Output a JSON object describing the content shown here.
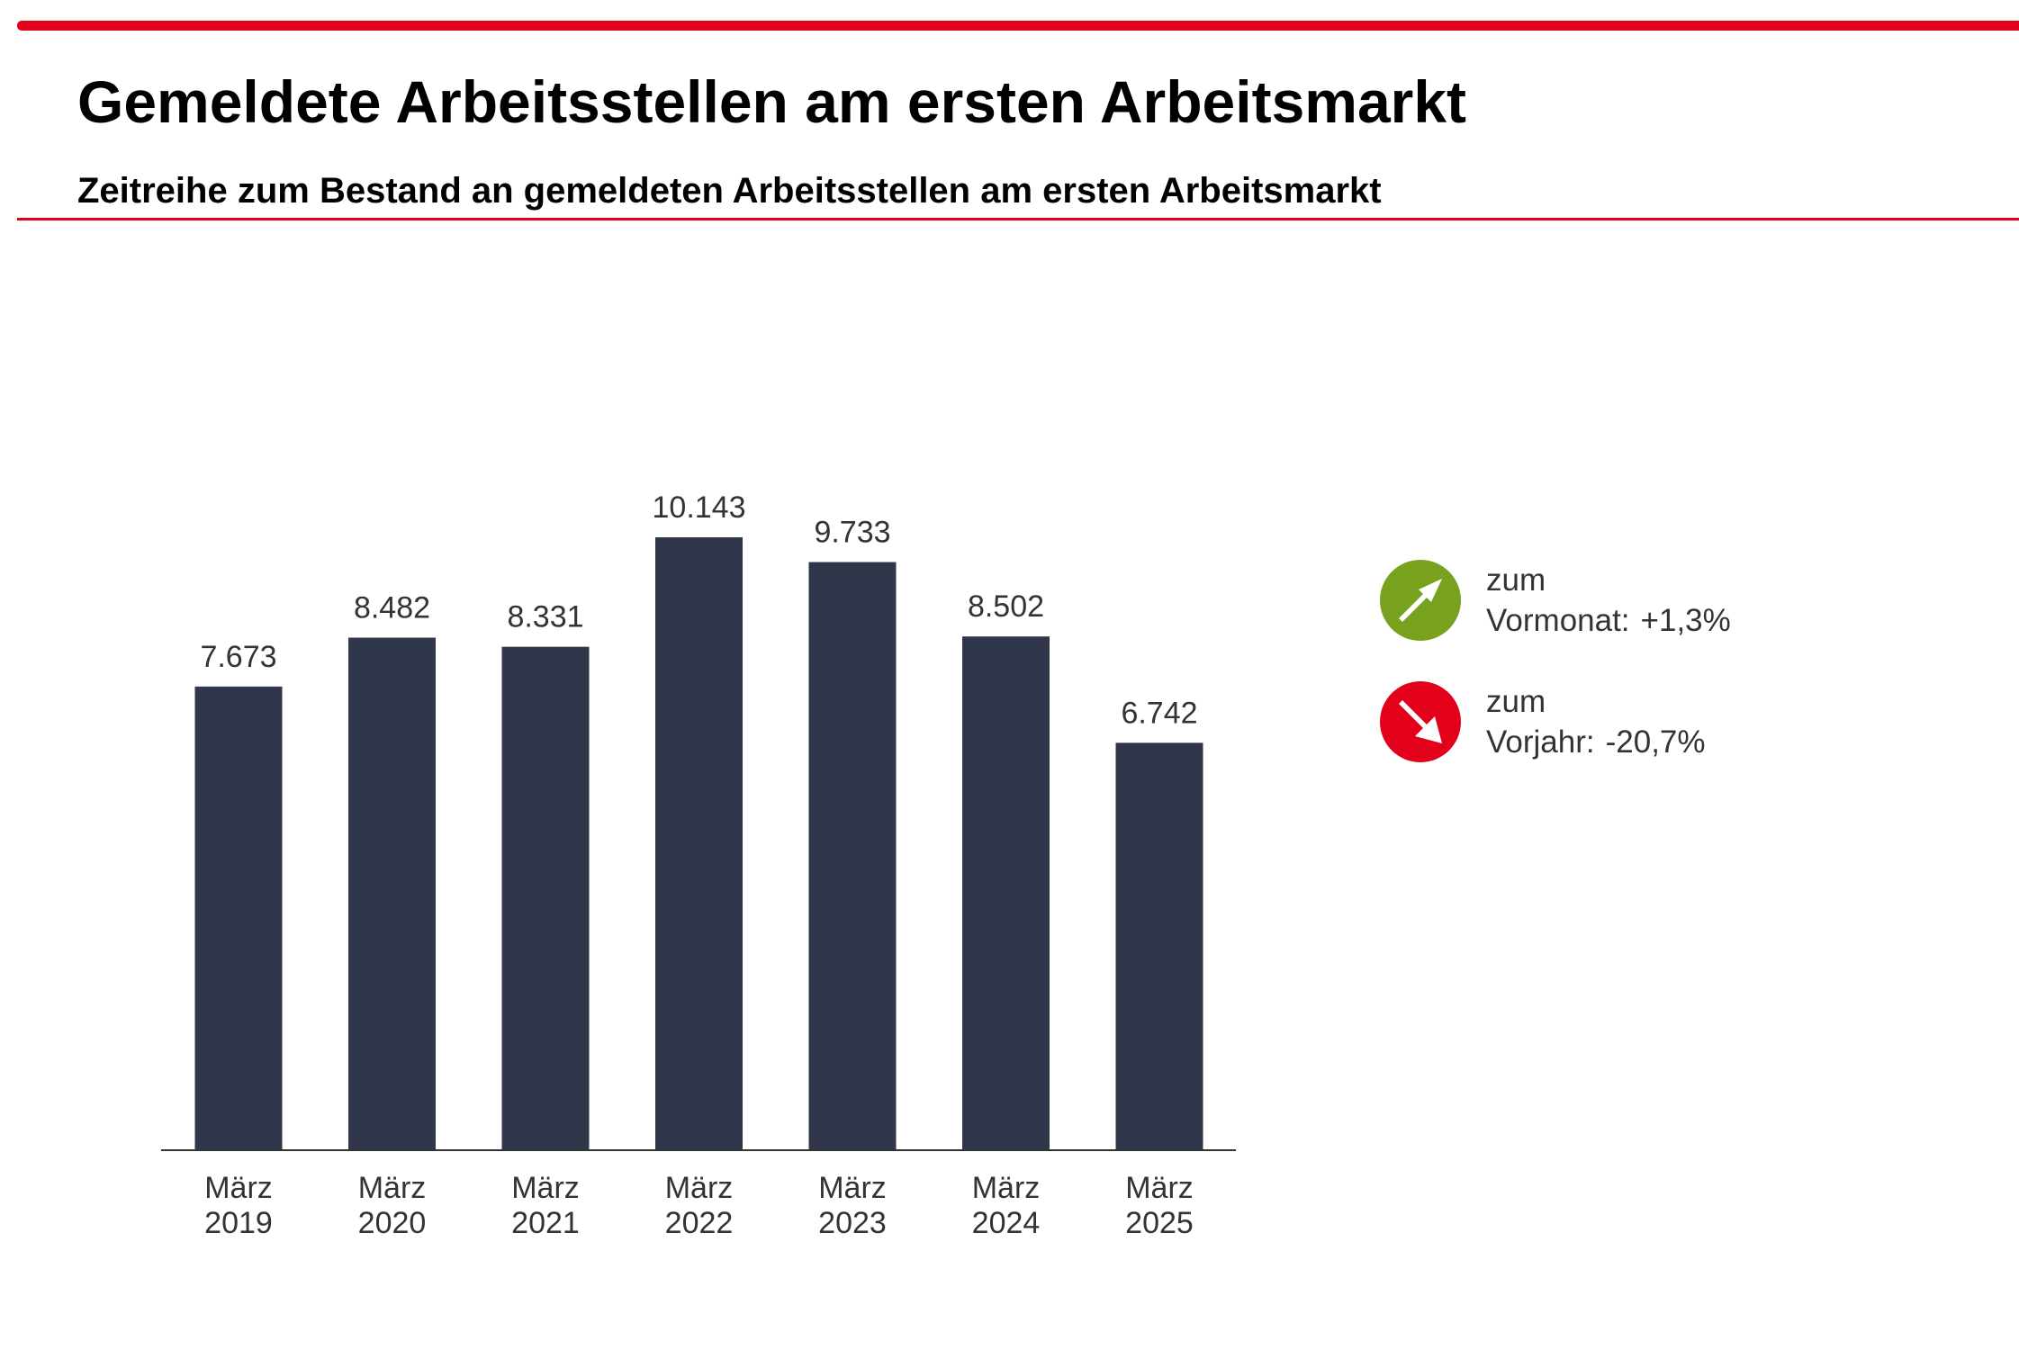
{
  "header": {
    "title": "Gemeldete Arbeitsstellen am ersten Arbeitsmarkt",
    "subtitle": "Zeitreihe zum Bestand an gemeldeten Arbeitsstellen am ersten Arbeitsmarkt"
  },
  "colors": {
    "accent": "#e2001a",
    "bar": "#30374a",
    "up_indicator": "#78a21e",
    "down_indicator": "#e2001a"
  },
  "chart_data": {
    "type": "bar",
    "title": "",
    "xlabel": "",
    "ylabel": "",
    "categories": [
      [
        "März",
        "2019"
      ],
      [
        "März",
        "2020"
      ],
      [
        "März",
        "2021"
      ],
      [
        "März",
        "2022"
      ],
      [
        "März",
        "2023"
      ],
      [
        "März",
        "2024"
      ],
      [
        "März",
        "2025"
      ]
    ],
    "values": [
      7673,
      8482,
      8331,
      10143,
      9733,
      8502,
      6742
    ],
    "value_labels": [
      "7.673",
      "8.482",
      "8.331",
      "10.143",
      "9.733",
      "8.502",
      "6.742"
    ],
    "ylim": [
      0,
      10143
    ],
    "grid": false,
    "legend": "none"
  },
  "indicators": [
    {
      "icon": "arrow-up-right-icon",
      "line1": "zum",
      "label": "Vormonat:",
      "value": "+1,3%"
    },
    {
      "icon": "arrow-down-right-icon",
      "line1": "zum",
      "label": "Vorjahr:",
      "value": "-20,7%"
    }
  ]
}
